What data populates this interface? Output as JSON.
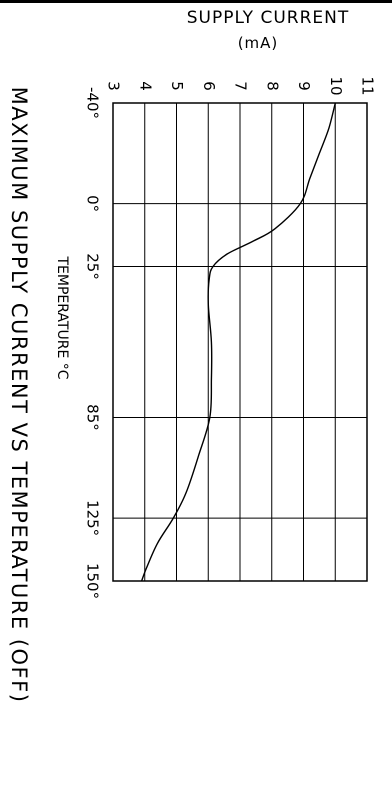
{
  "chart_data": {
    "type": "line",
    "orientation": "rotated-90-cw",
    "title": "MAXIMUM SUPPLY CURRENT VS TEMPERATURE (OFF)",
    "ylabel": "SUPPLY CURRENT",
    "ylabel_unit": "(mA)",
    "xlabel": "TEMPERATURE °C",
    "ylim": [
      3,
      11
    ],
    "y_ticks": [
      3,
      4,
      5,
      6,
      7,
      8,
      9,
      10,
      11
    ],
    "x_tick_values": [
      -40,
      0,
      25,
      85,
      125,
      150
    ],
    "x_tick_labels": [
      "-40°",
      "0°",
      "25°",
      "85°",
      "125°",
      "150°"
    ],
    "xlim": [
      -40,
      150
    ],
    "grid": true,
    "series": [
      {
        "x": [
          -40,
          -30,
          -20,
          -10,
          0,
          10,
          15,
          20,
          25,
          30,
          40,
          55,
          70,
          85,
          100,
          115,
          125,
          135,
          145,
          150
        ],
        "values": [
          10.0,
          9.8,
          9.5,
          9.2,
          8.9,
          8.1,
          7.4,
          6.6,
          6.15,
          6.03,
          6.0,
          6.1,
          6.1,
          6.05,
          5.7,
          5.3,
          4.9,
          4.4,
          4.05,
          3.9
        ]
      }
    ]
  }
}
